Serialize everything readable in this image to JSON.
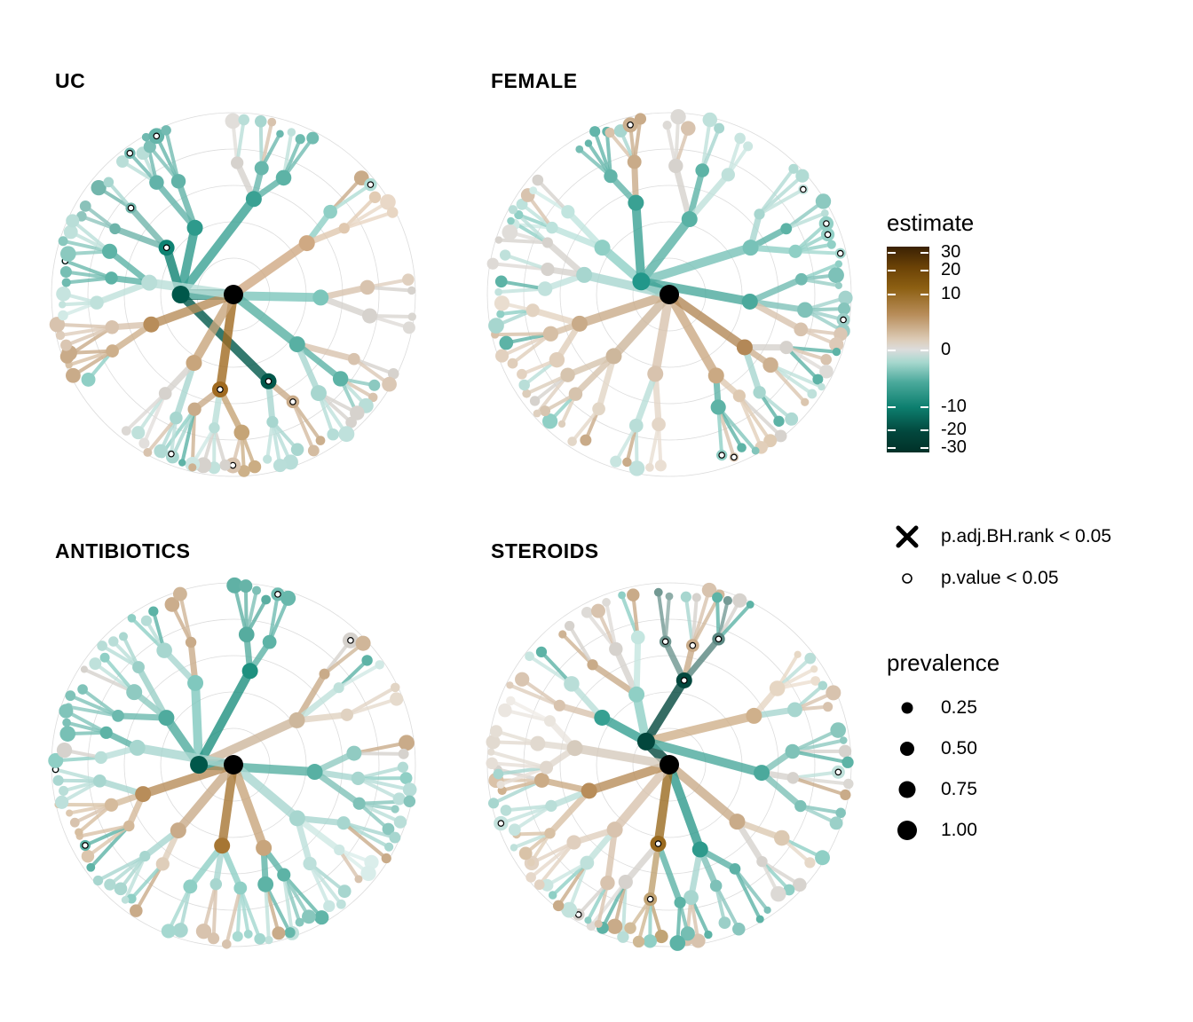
{
  "panels": [
    {
      "title": "UC",
      "seed": 11,
      "hub": {
        "color": "#00574a",
        "angle": 70,
        "len": 0.29
      },
      "branches": [
        {
          "a": 305,
          "c": "#0e8272",
          "sig": true
        },
        {
          "a": 330,
          "c": "#2e9a8c"
        },
        {
          "a": 12,
          "c": "#3aa193"
        },
        {
          "a": 92,
          "c": "#7cc6bb"
        },
        {
          "a": 158,
          "c": "#00574a",
          "sig": true
        },
        {
          "a": 188,
          "c": "#a06a20",
          "sig": true
        },
        {
          "a": 210,
          "c": "#c8a57c"
        },
        {
          "a": 250,
          "c": "#b88d5a"
        },
        {
          "a": 278,
          "c": "#b9ded8"
        },
        {
          "a": 55,
          "c": "#cfa983"
        },
        {
          "a": 128,
          "c": "#58b0a3"
        }
      ]
    },
    {
      "title": "FEMALE",
      "seed": 23,
      "hub": {
        "color": "#22978a",
        "angle": 95,
        "len": 0.17
      },
      "branches": [
        {
          "a": 305,
          "c": "#8fcfc5"
        },
        {
          "a": 340,
          "c": "#3aa193"
        },
        {
          "a": 15,
          "c": "#59b2a5"
        },
        {
          "a": 60,
          "c": "#78c2b8"
        },
        {
          "a": 95,
          "c": "#4ba99c"
        },
        {
          "a": 150,
          "c": "#caa983"
        },
        {
          "a": 190,
          "c": "#d8c3ae"
        },
        {
          "a": 222,
          "c": "#cdb79c"
        },
        {
          "a": 252,
          "c": "#c9ab89"
        },
        {
          "a": 283,
          "c": "#a7d6cf"
        },
        {
          "a": 125,
          "c": "#b38857"
        }
      ]
    },
    {
      "title": "ANTIBIOTICS",
      "seed": 37,
      "hub": {
        "color": "#00574a",
        "angle": 70,
        "len": 0.19
      },
      "branches": [
        {
          "a": 305,
          "c": "#4fab9e"
        },
        {
          "a": 335,
          "c": "#80c8be"
        },
        {
          "a": 10,
          "c": "#1e907f"
        },
        {
          "a": 55,
          "c": "#cdb79c"
        },
        {
          "a": 95,
          "c": "#58b0a3"
        },
        {
          "a": 130,
          "c": "#a7d6cf"
        },
        {
          "a": 160,
          "c": "#c8a57c"
        },
        {
          "a": 188,
          "c": "#a67633"
        },
        {
          "a": 220,
          "c": "#c9ab89"
        },
        {
          "a": 252,
          "c": "#b88d5a"
        },
        {
          "a": 280,
          "c": "#a7d6cf"
        }
      ]
    },
    {
      "title": "STEROIDS",
      "seed": 53,
      "hub": {
        "color": "#02473d",
        "angle": 115,
        "len": 0.18
      },
      "branches": [
        {
          "a": 305,
          "c": "#36a092"
        },
        {
          "a": 335,
          "c": "#8fcfc5"
        },
        {
          "a": 10,
          "c": "#02473d",
          "sig": true
        },
        {
          "a": 60,
          "c": "#cfb08b"
        },
        {
          "a": 95,
          "c": "#4ba99c"
        },
        {
          "a": 130,
          "c": "#c9ab89"
        },
        {
          "a": 160,
          "c": "#2e9a8c"
        },
        {
          "a": 188,
          "c": "#9a6a1f",
          "sig": true
        },
        {
          "a": 220,
          "c": "#d8c3ae"
        },
        {
          "a": 252,
          "c": "#b88d5a"
        },
        {
          "a": 280,
          "c": "#d6cbbd"
        }
      ]
    }
  ],
  "legend": {
    "estimate": {
      "title": "estimate",
      "ticks": [
        {
          "label": "30",
          "value": 30
        },
        {
          "label": "20",
          "value": 20
        },
        {
          "label": "10",
          "value": 10
        },
        {
          "label": "0",
          "value": 0
        },
        {
          "label": "-10",
          "value": -10
        },
        {
          "label": "-20",
          "value": -20
        },
        {
          "label": "-30",
          "value": -30
        }
      ]
    },
    "significance": [
      {
        "symbol": "cross",
        "label": "p.adj.BH.rank < 0.05"
      },
      {
        "symbol": "open-circle",
        "label": "p.value < 0.05"
      }
    ],
    "prevalence": {
      "title": "prevalence",
      "items": [
        {
          "label": "0.25",
          "value": 0.25
        },
        {
          "label": "0.50",
          "value": 0.5
        },
        {
          "label": "0.75",
          "value": 0.75
        },
        {
          "label": "1.00",
          "value": 1.0
        }
      ]
    }
  },
  "colors": {
    "strong_positive": "#4b2d04",
    "positive": "#8c5a10",
    "neutral": "#d6d2cd",
    "negative": "#0a8373",
    "strong_negative": "#02342c",
    "grid": "#dcdcdc"
  }
}
